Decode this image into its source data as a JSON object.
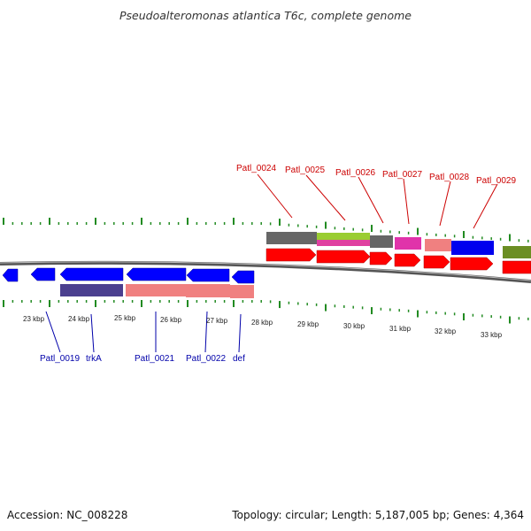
{
  "title": "Pseudoalteromonas atlantica T6c, complete genome",
  "accession_text": "Accession: NC_008228",
  "summary_text": "Topology: circular; Length: 5,187,005 bp; Genes: 4,364",
  "colors": {
    "forward_gene": "#ff0000",
    "reverse_gene": "#0000ff",
    "forward_label": "#cc0000",
    "reverse_label": "#0000aa",
    "tick": "#228b22",
    "backbone": "#777777"
  },
  "ruler_labels": [
    "23 kbp",
    "24 kbp",
    "25 kbp",
    "26 kbp",
    "27 kbp",
    "28 kbp",
    "29 kbp",
    "30 kbp",
    "31 kbp",
    "32 kbp",
    "33 kbp"
  ],
  "forward_gene_labels": [
    "Patl_0024",
    "Patl_0025",
    "Patl_0026",
    "Patl_0027",
    "Patl_0028",
    "Patl_0029"
  ],
  "reverse_gene_labels": [
    "Patl_0019",
    "trkA",
    "Patl_0021",
    "Patl_0022",
    "def"
  ]
}
